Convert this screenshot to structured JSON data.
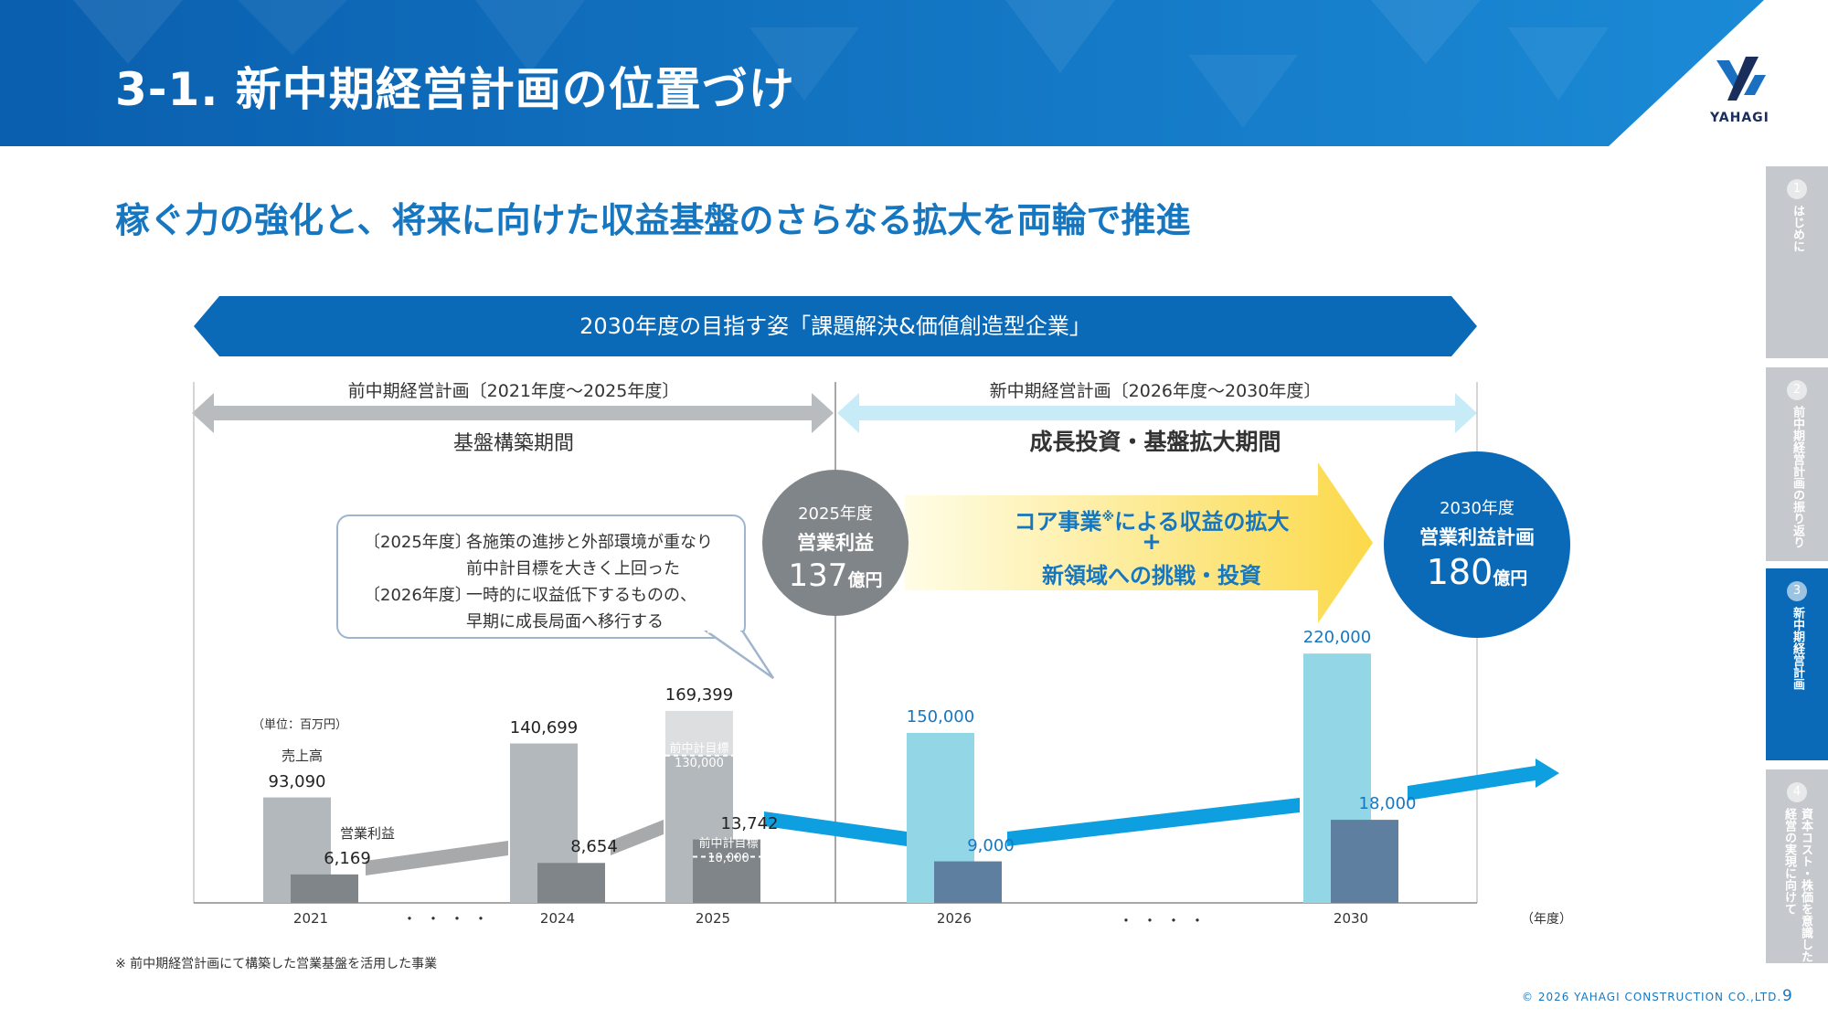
{
  "header": {
    "title": "3-1.  新中期経営計画の位置づけ",
    "logo_text": "YAHAGI"
  },
  "subtitle": "稼ぐ力の強化と、将来に向けた収益基盤のさらなる拡大を両輪で推進",
  "vision": "2030年度の目指す姿「課題解決&価値創造型企業」",
  "periods": {
    "previous": {
      "title": "前中期経営計画〔2021年度～2025年度〕",
      "phase": "基盤構築期間"
    },
    "new": {
      "title": "新中期経営計画〔2026年度～2030年度〕",
      "phase": "成長投資・基盤拡大期間"
    }
  },
  "callout": {
    "line1_tag": "〔2025年度〕",
    "line1": "各施策の進捗と外部環境が重なり",
    "line2": "前中計目標を大きく上回った",
    "line3_tag": "〔2026年度〕",
    "line3": "一時的に収益低下するものの、",
    "line4": "早期に成長局面へ移行する"
  },
  "circle_2025": {
    "line1": "2025年度",
    "line2": "営業利益",
    "value": "137",
    "unit": "億円"
  },
  "circle_2030": {
    "line1": "2030年度",
    "line2": "営業利益計画",
    "value": "180",
    "unit": "億円"
  },
  "core_arrow": {
    "line1": "コア事業",
    "sup": "※",
    "line1_rest": "による収益の拡大",
    "plus": "+",
    "line2": "新領域への挑戦・投資"
  },
  "chart_labels": {
    "unit": "（単位：百万円）",
    "sales_label": "売上高",
    "op_label": "営業利益",
    "prev_target_sales_label": "前中計目標",
    "prev_target_sales_value": "130,000",
    "prev_target_op_label": "前中計目標",
    "prev_target_op_value": "10,000",
    "year_unit": "（年度）",
    "dots": "・・・・"
  },
  "chart_data": {
    "type": "bar",
    "categories": [
      "2021",
      "2024",
      "2025",
      "2026",
      "2030"
    ],
    "series": [
      {
        "name": "売上高",
        "values": [
          93090,
          140699,
          169399,
          150000,
          220000
        ]
      },
      {
        "name": "営業利益",
        "values": [
          6169,
          8654,
          13742,
          9000,
          18000
        ]
      }
    ],
    "value_labels": {
      "sales": [
        "93,090",
        "140,699",
        "169,399",
        "150,000",
        "220,000"
      ],
      "op": [
        "6,169",
        "8,654",
        "13,742",
        "9,000",
        "18,000"
      ]
    },
    "previous_plan_targets": {
      "sales": 130000,
      "operating_income": 10000
    },
    "colors": {
      "sales_actual": "#b3b8bd",
      "op_actual": "#7f8589",
      "sales_plan": "#93d6e6",
      "op_plan": "#5e7f9f",
      "trend_plan": "#0e9fe0",
      "trend_actual": "#a7a9ab"
    }
  },
  "footnote": "※ 前中期経営計画にて構築した営業基盤を活用した事業",
  "copyright": "© 2026 YAHAGI CONSTRUCTION CO.,LTD.",
  "page_number": "9",
  "side_tabs": [
    {
      "num": "1",
      "label": "はじめに"
    },
    {
      "num": "2",
      "label": "前中期経営計画の振り返り"
    },
    {
      "num": "3",
      "label": "新中期経営計画"
    },
    {
      "num": "4",
      "label": "資本コスト・株価を意識した経営の実現に向けて"
    }
  ]
}
